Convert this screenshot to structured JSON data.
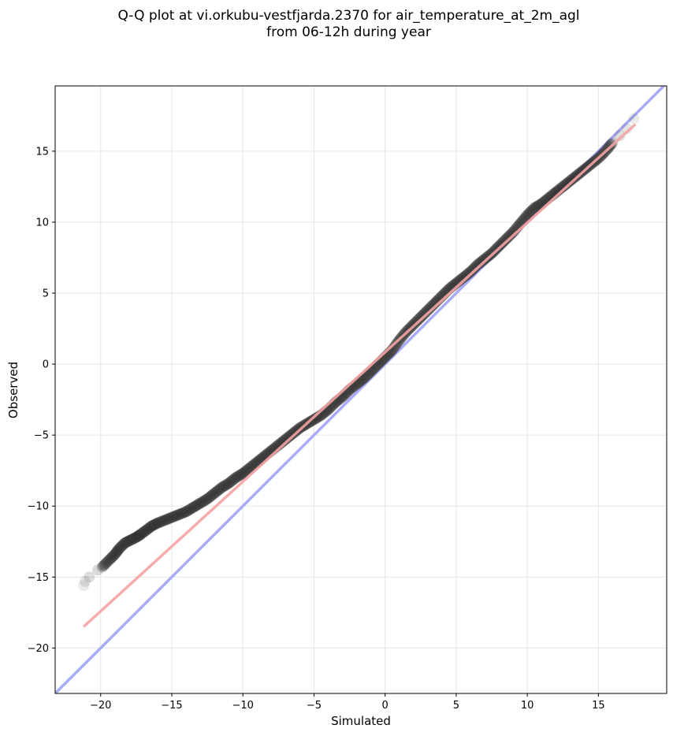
{
  "chart_data": {
    "type": "scatter",
    "title": [
      "Q-Q plot at vi.orkubu-vestfjarda.2370 for air_temperature_at_2m_agl",
      "from 06-12h during year"
    ],
    "xlabel": "Simulated",
    "ylabel": "Observed",
    "xlim": [
      -23.2,
      19.8
    ],
    "ylim": [
      -23.2,
      19.6
    ],
    "xticks": [
      -20,
      -15,
      -10,
      -5,
      0,
      5,
      10,
      15
    ],
    "yticks": [
      -20,
      -15,
      -10,
      -5,
      0,
      5,
      10,
      15
    ],
    "xtick_labels": [
      "−20",
      "−15",
      "−10",
      "−5",
      "0",
      "5",
      "10",
      "15"
    ],
    "ytick_labels": [
      "−20",
      "−15",
      "−10",
      "−5",
      "0",
      "5",
      "10",
      "15"
    ],
    "grid": true,
    "quantile_points": {
      "x": [
        -21.2,
        -21.1,
        -20.8,
        -20.2,
        -19.9,
        -19.4,
        -19.0,
        -18.7,
        -18.3,
        -17.9,
        -17.5,
        -17.2,
        -16.8,
        -16.4,
        -16.0,
        -15.5,
        -15.0,
        -14.5,
        -14.0,
        -13.5,
        -13.0,
        -12.5,
        -12.0,
        -11.5,
        -11.0,
        -10.5,
        -10.0,
        -9.5,
        -9.0,
        -8.5,
        -8.0,
        -7.5,
        -7.0,
        -6.5,
        -6.0,
        -5.5,
        -5.0,
        -4.5,
        -4.0,
        -3.5,
        -3.0,
        -2.5,
        -2.0,
        -1.5,
        -1.0,
        -0.5,
        0.0,
        0.5,
        1.0,
        1.5,
        2.0,
        2.5,
        3.0,
        3.5,
        4.0,
        4.5,
        5.0,
        5.5,
        6.0,
        6.5,
        7.0,
        7.5,
        8.0,
        8.5,
        9.0,
        9.5,
        10.0,
        10.5,
        11.0,
        11.5,
        12.0,
        12.5,
        13.0,
        13.5,
        14.0,
        14.5,
        15.0,
        15.5,
        16.0,
        16.5,
        17.0,
        17.5
      ],
      "y": [
        -15.6,
        -15.3,
        -15.0,
        -14.5,
        -14.3,
        -13.8,
        -13.4,
        -13.0,
        -12.6,
        -12.4,
        -12.2,
        -12.0,
        -11.7,
        -11.4,
        -11.2,
        -11.0,
        -10.8,
        -10.6,
        -10.4,
        -10.1,
        -9.8,
        -9.5,
        -9.1,
        -8.7,
        -8.4,
        -8.0,
        -7.7,
        -7.3,
        -6.9,
        -6.5,
        -6.1,
        -5.7,
        -5.3,
        -4.9,
        -4.5,
        -4.2,
        -3.9,
        -3.6,
        -3.2,
        -2.7,
        -2.3,
        -1.8,
        -1.4,
        -1.0,
        -0.5,
        0.0,
        0.5,
        1.0,
        1.7,
        2.3,
        2.8,
        3.3,
        3.8,
        4.3,
        4.8,
        5.3,
        5.7,
        6.1,
        6.5,
        7.0,
        7.4,
        7.8,
        8.3,
        8.8,
        9.3,
        9.9,
        10.5,
        11.0,
        11.3,
        11.7,
        12.1,
        12.5,
        12.9,
        13.3,
        13.7,
        14.1,
        14.5,
        15.0,
        15.6,
        16.1,
        16.6,
        17.3
      ]
    },
    "fit_line": {
      "color": "#f4a3a3",
      "from": [
        -21.2,
        -18.5
      ],
      "to": [
        17.6,
        16.9
      ]
    },
    "identity_line": {
      "color": "#a8abf5"
    },
    "point_color": "#333333"
  }
}
